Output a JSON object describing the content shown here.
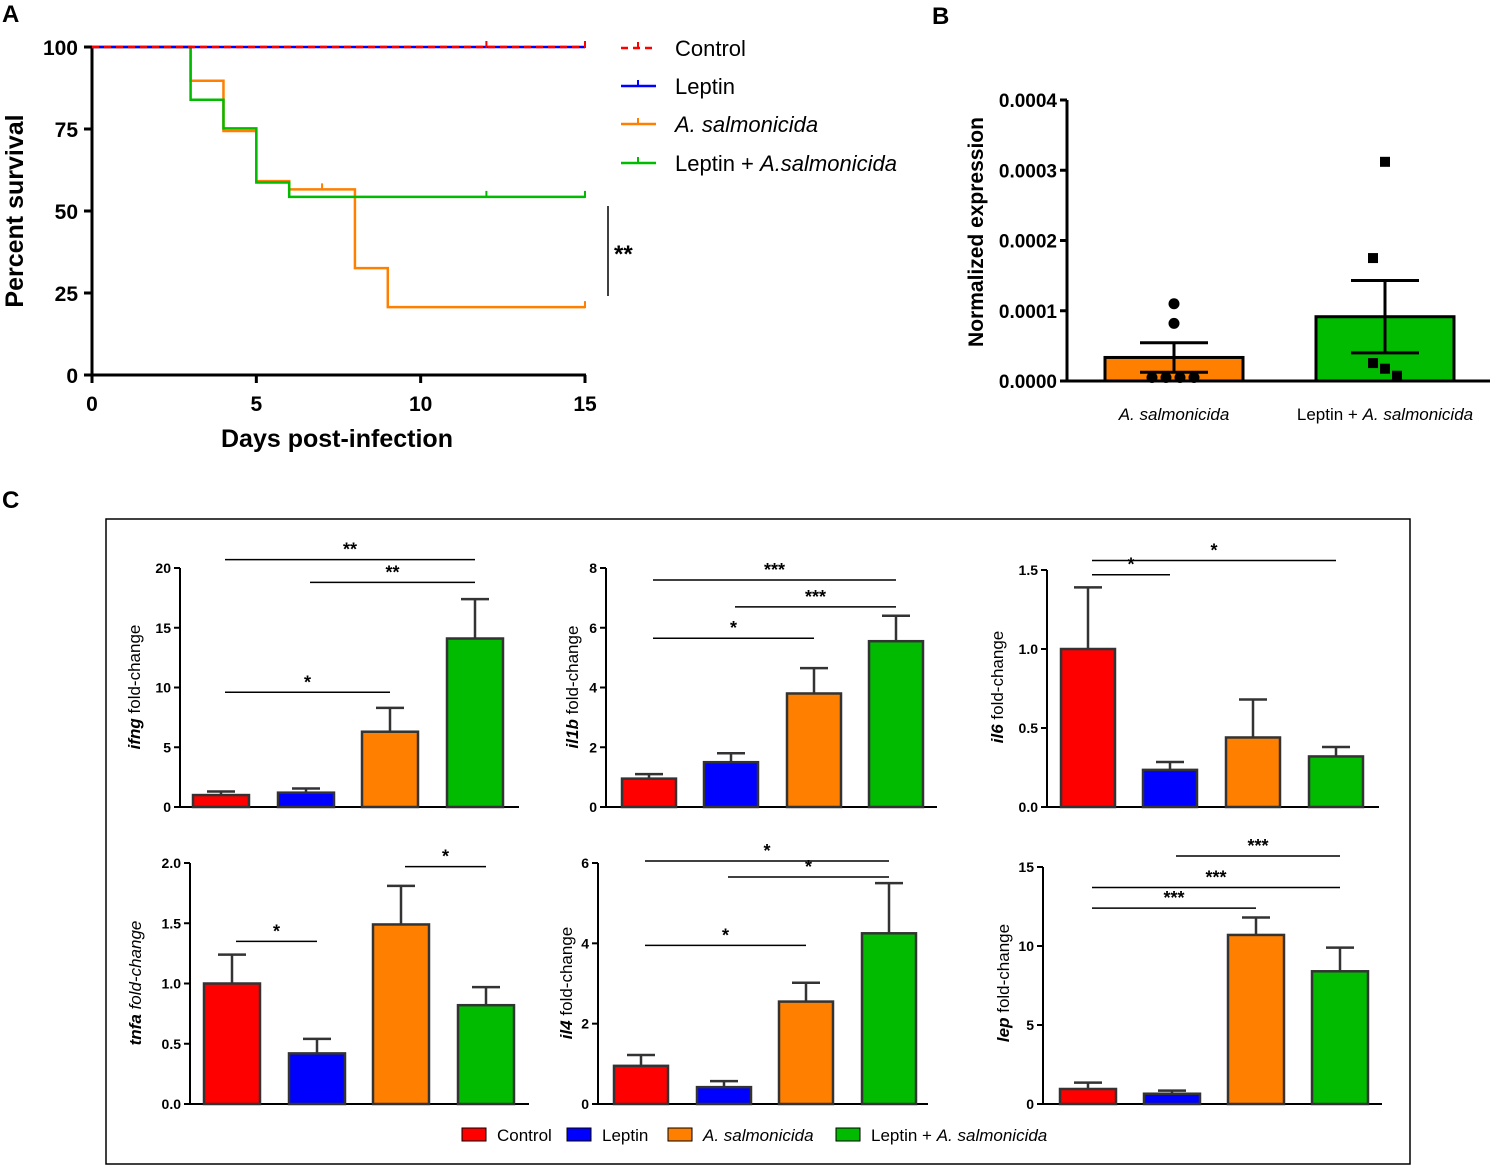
{
  "colors": {
    "control": "#ff0000",
    "leptin": "#0000ff",
    "asal": "#ff8000",
    "combo": "#00bb00",
    "frame": "#000000"
  },
  "panel_labels": {
    "a": "A",
    "b": "B",
    "c": "C"
  },
  "legend_c": [
    {
      "label": "Control",
      "color": "#ff0000"
    },
    {
      "label": "Leptin",
      "color": "#0000ff"
    },
    {
      "label": "A. salmonicida",
      "color": "#ff8000"
    },
    {
      "label": "Leptin + ",
      "label_italic": "A. salmonicida",
      "color": "#00bb00"
    }
  ],
  "chart_data": [
    {
      "id": "A",
      "type": "line",
      "title": "",
      "xlabel": "Days post-infection",
      "ylabel": "Percent survival",
      "xlim": [
        0,
        15
      ],
      "ylim": [
        0,
        100
      ],
      "xticks": [
        0,
        5,
        10,
        15
      ],
      "yticks": [
        0,
        25,
        50,
        75,
        100
      ],
      "significance": "**",
      "series": [
        {
          "name": "Control",
          "color": "#ff0000",
          "dashed": true,
          "steps": [
            [
              0,
              100
            ],
            [
              15,
              100
            ]
          ],
          "censor": [
            [
              12,
              100
            ],
            [
              15,
              100
            ]
          ]
        },
        {
          "name": "Leptin",
          "color": "#0000ff",
          "dashed": false,
          "steps": [
            [
              0,
              100
            ],
            [
              15,
              100
            ]
          ],
          "censor": []
        },
        {
          "name": "A. salmonicida",
          "italic": true,
          "color": "#ff8000",
          "dashed": false,
          "steps": [
            [
              0,
              100
            ],
            [
              3,
              89.7
            ],
            [
              4,
              74.4
            ],
            [
              5,
              59.1
            ],
            [
              6,
              56.6
            ],
            [
              8,
              32.6
            ],
            [
              9,
              20.7
            ],
            [
              15,
              20.7
            ]
          ],
          "censor": [
            [
              7,
              56.6
            ],
            [
              15,
              20.7
            ]
          ]
        },
        {
          "name": "Leptin + ",
          "name_italic": "A.salmonicida",
          "color": "#00bb00",
          "dashed": false,
          "steps": [
            [
              0,
              100
            ],
            [
              3,
              83.9
            ],
            [
              4,
              75.2
            ],
            [
              5,
              58.7
            ],
            [
              6,
              54.3
            ],
            [
              15,
              54.3
            ]
          ],
          "censor": [
            [
              12,
              54.3
            ],
            [
              15,
              54.3
            ]
          ]
        }
      ]
    },
    {
      "id": "B",
      "type": "bar",
      "title": "",
      "xlabel": "",
      "ylabel": "Normalized expression",
      "ylim": [
        0,
        0.0004
      ],
      "yticks": [
        "0.0000",
        "0.0001",
        "0.0002",
        "0.0003",
        "0.0004"
      ],
      "categories": [
        {
          "label": "A. salmonicida",
          "italic": true
        },
        {
          "label": "Leptin + ",
          "label_italic": "A. salmonicida"
        }
      ],
      "values": [
        3.35e-05,
        9.15e-05
      ],
      "sem": [
        2.1e-05,
        5.15e-05
      ],
      "colors": [
        "#ff8000",
        "#00bb00"
      ],
      "points": [
        {
          "marker": "circle",
          "values": [
            0.00011,
            8.2e-05,
            5e-06,
            5e-06,
            5e-06,
            5e-06
          ]
        },
        {
          "marker": "square",
          "values": [
            0.000312,
            0.000175,
            2.55e-05,
            1.75e-05,
            7.5e-06
          ]
        }
      ]
    },
    {
      "id": "C-ifng",
      "type": "bar",
      "gene": "ifng",
      "ylabel_suffix": " fold-change",
      "ylim": [
        0,
        20
      ],
      "yticks": [
        "0",
        "5",
        "10",
        "15",
        "20"
      ],
      "categories": [
        "Control",
        "Leptin",
        "A. salmonicida",
        "Leptin + A. salmonicida"
      ],
      "values": [
        1.0,
        1.2,
        6.3,
        14.1
      ],
      "sem": [
        0.3,
        0.35,
        2.0,
        3.3
      ],
      "brackets": [
        {
          "from": 0,
          "to": 3,
          "label": "**",
          "y": 20.7
        },
        {
          "from": 1,
          "to": 3,
          "label": "**",
          "y": 18.8
        },
        {
          "from": 0,
          "to": 2,
          "label": "*",
          "y": 9.6
        }
      ]
    },
    {
      "id": "C-il1b",
      "type": "bar",
      "gene": "il1b",
      "ylabel_suffix": " fold-change",
      "ylim": [
        0,
        8
      ],
      "yticks": [
        "0",
        "2",
        "4",
        "6",
        "8"
      ],
      "categories": [
        "Control",
        "Leptin",
        "A. salmonicida",
        "Leptin + A. salmonicida"
      ],
      "values": [
        0.95,
        1.5,
        3.8,
        5.55
      ],
      "sem": [
        0.15,
        0.3,
        0.85,
        0.85
      ],
      "brackets": [
        {
          "from": 0,
          "to": 3,
          "label": "***",
          "y": 7.6
        },
        {
          "from": 1,
          "to": 3,
          "label": "***",
          "y": 6.7
        },
        {
          "from": 0,
          "to": 2,
          "label": "*",
          "y": 5.65
        }
      ]
    },
    {
      "id": "C-il6",
      "type": "bar",
      "gene": "il6",
      "ylabel_suffix": " fold-change",
      "ylim": [
        0,
        1.5
      ],
      "yticks": [
        "0.0",
        "0.5",
        "1.0",
        "1.5"
      ],
      "categories": [
        "Control",
        "Leptin",
        "A. salmonicida",
        "Leptin + A. salmonicida"
      ],
      "values": [
        1.0,
        0.235,
        0.44,
        0.32
      ],
      "sem": [
        0.39,
        0.05,
        0.24,
        0.06
      ],
      "brackets": [
        {
          "from": 0,
          "to": 3,
          "label": "*",
          "y": 1.56
        },
        {
          "from": 0,
          "to": 1,
          "label": "*",
          "y": 1.47
        }
      ]
    },
    {
      "id": "C-tnfa",
      "type": "bar",
      "gene": "tnfa",
      "ylabel_suffix": " fold-change",
      "suffix_italic": true,
      "ylim": [
        0,
        2.0
      ],
      "yticks": [
        "0.0",
        "0.5",
        "1.0",
        "1.5",
        "2.0"
      ],
      "categories": [
        "Control",
        "Leptin",
        "A. salmonicida",
        "Leptin + A. salmonicida"
      ],
      "values": [
        1.0,
        0.42,
        1.49,
        0.82
      ],
      "sem": [
        0.24,
        0.12,
        0.32,
        0.15
      ],
      "brackets": [
        {
          "from": 0,
          "to": 1,
          "label": "*",
          "y": 1.35
        },
        {
          "from": 2,
          "to": 3,
          "label": "*",
          "y": 1.97
        }
      ]
    },
    {
      "id": "C-il4",
      "type": "bar",
      "gene": "il4",
      "ylabel_suffix": " fold-change",
      "ylim": [
        0,
        6
      ],
      "yticks": [
        "0",
        "2",
        "4",
        "6"
      ],
      "categories": [
        "Control",
        "Leptin",
        "A. salmonicida",
        "Leptin + A. salmonicida"
      ],
      "values": [
        0.95,
        0.42,
        2.55,
        4.25
      ],
      "sem": [
        0.27,
        0.15,
        0.47,
        1.25
      ],
      "brackets": [
        {
          "from": 0,
          "to": 3,
          "label": "*",
          "y": 6.05
        },
        {
          "from": 1,
          "to": 3,
          "label": "*",
          "y": 5.65
        },
        {
          "from": 0,
          "to": 2,
          "label": "*",
          "y": 3.95
        }
      ]
    },
    {
      "id": "C-lep",
      "type": "bar",
      "gene": "lep",
      "ylabel_suffix": " fold-change",
      "ylim": [
        0,
        15
      ],
      "yticks": [
        "0",
        "5",
        "10",
        "15"
      ],
      "categories": [
        "Control",
        "Leptin",
        "A. salmonicida",
        "Leptin + A. salmonicida"
      ],
      "values": [
        0.95,
        0.65,
        10.7,
        8.4
      ],
      "sem": [
        0.4,
        0.2,
        1.1,
        1.5
      ],
      "brackets": [
        {
          "from": 1,
          "to": 3,
          "label": "***",
          "y": 15.7
        },
        {
          "from": 0,
          "to": 3,
          "label": "***",
          "y": 13.7
        },
        {
          "from": 0,
          "to": 2,
          "label": "***",
          "y": 12.4
        }
      ]
    }
  ]
}
